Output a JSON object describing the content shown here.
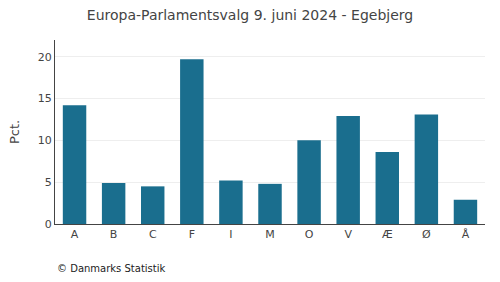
{
  "chart_data": {
    "type": "bar",
    "title": "Europa-Parlamentsvalg 9. juni 2024 - Egebjerg",
    "categories": [
      "A",
      "B",
      "C",
      "F",
      "I",
      "M",
      "O",
      "V",
      "Æ",
      "Ø",
      "Å"
    ],
    "values": [
      14.2,
      4.9,
      4.5,
      19.7,
      5.2,
      4.8,
      10.0,
      12.9,
      8.6,
      13.1,
      2.9
    ],
    "color": "#1a6e8e",
    "ylabel": "Pct.",
    "ylim": [
      0,
      22
    ],
    "yticks": [
      0,
      5,
      10,
      15,
      20
    ],
    "grid": true,
    "annotations": [
      "© Danmarks Statistik"
    ]
  }
}
